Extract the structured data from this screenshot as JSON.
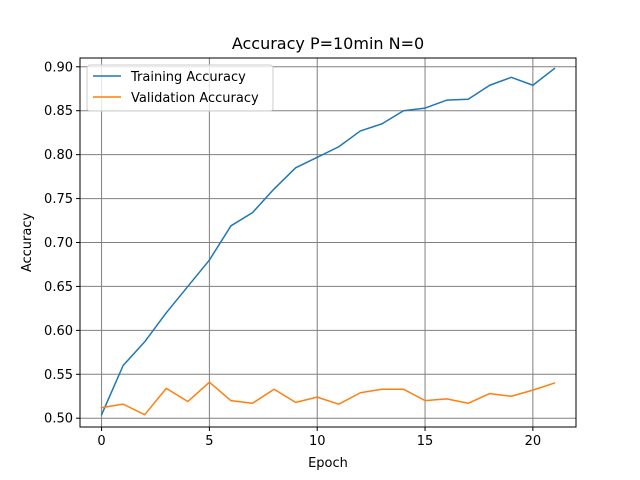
{
  "chart_data": {
    "type": "line",
    "title": "Accuracy P=10min N=0",
    "xlabel": "Epoch",
    "ylabel": "Accuracy",
    "xlim": [
      -1,
      22
    ],
    "ylim": [
      0.49,
      0.91
    ],
    "xticks": [
      0,
      5,
      10,
      15,
      20
    ],
    "yticks": [
      0.5,
      0.55,
      0.6,
      0.65,
      0.7,
      0.75,
      0.8,
      0.85,
      0.9
    ],
    "ytick_labels": [
      "0.50",
      "0.55",
      "0.60",
      "0.65",
      "0.70",
      "0.75",
      "0.80",
      "0.85",
      "0.90"
    ],
    "grid": true,
    "grid_color": "#808080",
    "legend_position": "upper-left",
    "x": [
      0,
      1,
      2,
      3,
      4,
      5,
      6,
      7,
      8,
      9,
      10,
      11,
      12,
      13,
      14,
      15,
      16,
      17,
      18,
      19,
      20,
      21
    ],
    "series": [
      {
        "name": "Training Accuracy",
        "color": "#1f77b4",
        "values": [
          0.504,
          0.56,
          0.587,
          0.62,
          0.65,
          0.68,
          0.719,
          0.734,
          0.761,
          0.785,
          0.797,
          0.809,
          0.827,
          0.835,
          0.85,
          0.853,
          0.862,
          0.863,
          0.879,
          0.888,
          0.879,
          0.898
        ]
      },
      {
        "name": "Validation Accuracy",
        "color": "#ff7f0e",
        "values": [
          0.512,
          0.516,
          0.504,
          0.534,
          0.519,
          0.541,
          0.52,
          0.517,
          0.533,
          0.518,
          0.524,
          0.516,
          0.529,
          0.533,
          0.533,
          0.52,
          0.522,
          0.517,
          0.528,
          0.525,
          0.532,
          0.54
        ]
      }
    ]
  }
}
